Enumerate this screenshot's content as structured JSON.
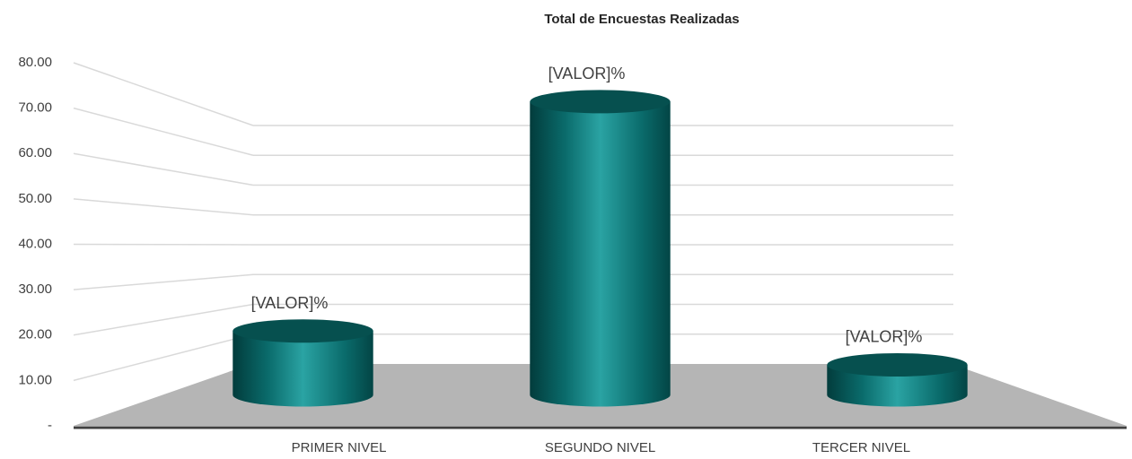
{
  "chart_data": {
    "type": "bar3d",
    "title": "Total de Encuestas Realizadas",
    "categories": [
      "PRIMER NIVEL",
      "SEGUNDO NIVEL",
      "TERCER NIVEL"
    ],
    "values": [
      17,
      78,
      8
    ],
    "value_labels": [
      "[VALOR]%",
      "[VALOR]%",
      "[VALOR]%"
    ],
    "color": "#0a6b6b",
    "ylim": [
      0,
      80
    ],
    "yticks": [
      {
        "value": 0,
        "label": "-"
      },
      {
        "value": 10,
        "label": "10.00"
      },
      {
        "value": 20,
        "label": "20.00"
      },
      {
        "value": 30,
        "label": "30.00"
      },
      {
        "value": 40,
        "label": "40.00"
      },
      {
        "value": 50,
        "label": "50.00"
      },
      {
        "value": 60,
        "label": "60.00"
      },
      {
        "value": 70,
        "label": "70.00"
      },
      {
        "value": 80,
        "label": "80.00"
      }
    ],
    "grid": true
  }
}
